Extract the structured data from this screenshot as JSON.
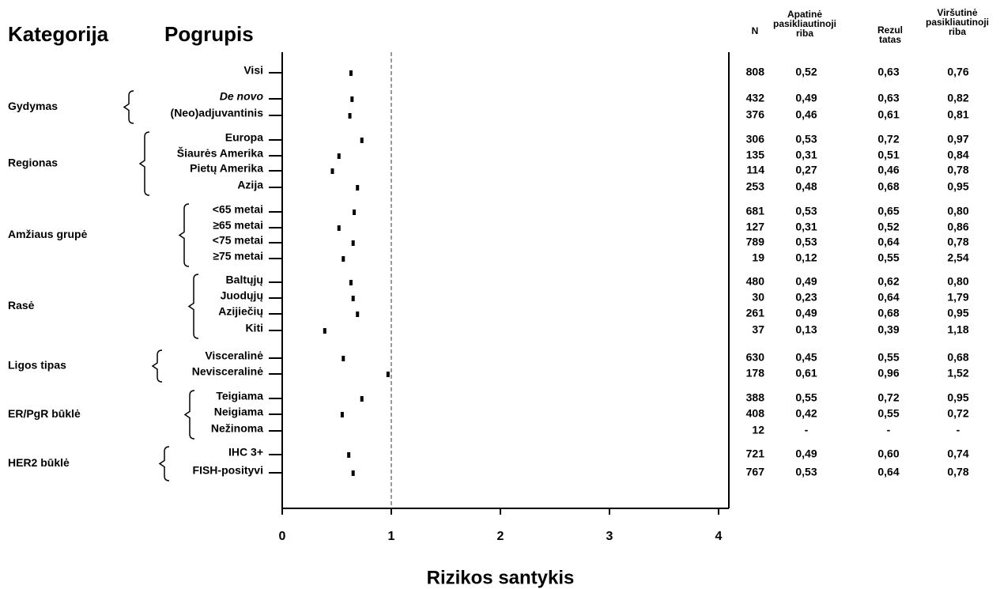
{
  "headers": {
    "category": "Kategorija",
    "subgroup": "Pogrupis",
    "n": "N",
    "lower": "Apatinė\npasikliautinoji\nriba",
    "result": "Rezul\ntatas",
    "upper": "Viršutinė\npasikliautinoji\nriba"
  },
  "categories": [
    {
      "name": "",
      "rows": [
        "Visi"
      ]
    },
    {
      "name": "Gydymas",
      "rows": [
        "De novo",
        "(Neo)adjuvantinis"
      ]
    },
    {
      "name": "Regionas",
      "rows": [
        "Europa",
        "Šiaurės Amerika",
        "Pietų Amerika",
        "Azija"
      ]
    },
    {
      "name": "Amžiaus grupė",
      "rows": [
        "<65 metai",
        "≥65 metai",
        "<75 metai",
        "≥75 metai"
      ]
    },
    {
      "name": "Rasė",
      "rows": [
        "Baltųjų",
        "Juodųjų",
        "Azijiečių",
        "Kiti"
      ]
    },
    {
      "name": "Ligos tipas",
      "rows": [
        "Visceralinė",
        "Nevisceralinė"
      ]
    },
    {
      "name": "ER/PgR būklė",
      "rows": [
        "Teigiama",
        "Neigiama",
        "Nežinoma"
      ]
    },
    {
      "name": "HER2 būklė",
      "rows": [
        "IHC 3+",
        "FISH-posityvi"
      ]
    }
  ],
  "chart_data": {
    "type": "scatter",
    "xlabel": "Rizikos santykis",
    "xlim": [
      0,
      4
    ],
    "xticks": [
      "0",
      "1",
      "2",
      "3",
      "4"
    ],
    "reference_line": 1,
    "rows": [
      {
        "label": "Visi",
        "n": "808",
        "lower": "0,52",
        "result": "0,63",
        "upper": "0,76",
        "hr": 0.63
      },
      {
        "label": "De novo",
        "n": "432",
        "lower": "0,49",
        "result": "0,63",
        "upper": "0,82",
        "hr": 0.64
      },
      {
        "label": "(Neo)adjuvantinis",
        "n": "376",
        "lower": "0,46",
        "result": "0,61",
        "upper": "0,81",
        "hr": 0.62
      },
      {
        "label": "Europa",
        "n": "306",
        "lower": "0,53",
        "result": "0,72",
        "upper": "0,97",
        "hr": 0.73
      },
      {
        "label": "Šiaurės Amerika",
        "n": "135",
        "lower": "0,31",
        "result": "0,51",
        "upper": "0,84",
        "hr": 0.52
      },
      {
        "label": "Pietų Amerika",
        "n": "114",
        "lower": "0,27",
        "result": "0,46",
        "upper": "0,78",
        "hr": 0.46
      },
      {
        "label": "Azija",
        "n": "253",
        "lower": "0,48",
        "result": "0,68",
        "upper": "0,95",
        "hr": 0.69
      },
      {
        "label": "<65 metai",
        "n": "681",
        "lower": "0,53",
        "result": "0,65",
        "upper": "0,80",
        "hr": 0.66
      },
      {
        "label": "≥65 metai",
        "n": "127",
        "lower": "0,31",
        "result": "0,52",
        "upper": "0,86",
        "hr": 0.52
      },
      {
        "label": "<75 metai",
        "n": "789",
        "lower": "0,53",
        "result": "0,64",
        "upper": "0,78",
        "hr": 0.65
      },
      {
        "label": "≥75 metai",
        "n": "19",
        "lower": "0,12",
        "result": "0,55",
        "upper": "2,54",
        "hr": 0.56
      },
      {
        "label": "Baltųjų",
        "n": "480",
        "lower": "0,49",
        "result": "0,62",
        "upper": "0,80",
        "hr": 0.63
      },
      {
        "label": "Juodųjų",
        "n": "30",
        "lower": "0,23",
        "result": "0,64",
        "upper": "1,79",
        "hr": 0.65
      },
      {
        "label": "Azijiečių",
        "n": "261",
        "lower": "0,49",
        "result": "0,68",
        "upper": "0,95",
        "hr": 0.69
      },
      {
        "label": "Kiti",
        "n": "37",
        "lower": "0,13",
        "result": "0,39",
        "upper": "1,18",
        "hr": 0.39
      },
      {
        "label": "Visceralinė",
        "n": "630",
        "lower": "0,45",
        "result": "0,55",
        "upper": "0,68",
        "hr": 0.56
      },
      {
        "label": "Nevisceralinė",
        "n": "178",
        "lower": "0,61",
        "result": "0,96",
        "upper": "1,52",
        "hr": 0.97
      },
      {
        "label": "Teigiama",
        "n": "388",
        "lower": "0,55",
        "result": "0,72",
        "upper": "0,95",
        "hr": 0.73
      },
      {
        "label": "Neigiama",
        "n": "408",
        "lower": "0,42",
        "result": "0,55",
        "upper": "0,72",
        "hr": 0.55
      },
      {
        "label": "Nežinoma",
        "n": "12",
        "lower": "-",
        "result": "-",
        "upper": "-",
        "hr": null
      },
      {
        "label": "IHC 3+",
        "n": "721",
        "lower": "0,49",
        "result": "0,60",
        "upper": "0,74",
        "hr": 0.61
      },
      {
        "label": "FISH-posityvi",
        "n": "767",
        "lower": "0,53",
        "result": "0,64",
        "upper": "0,78",
        "hr": 0.65
      }
    ]
  }
}
